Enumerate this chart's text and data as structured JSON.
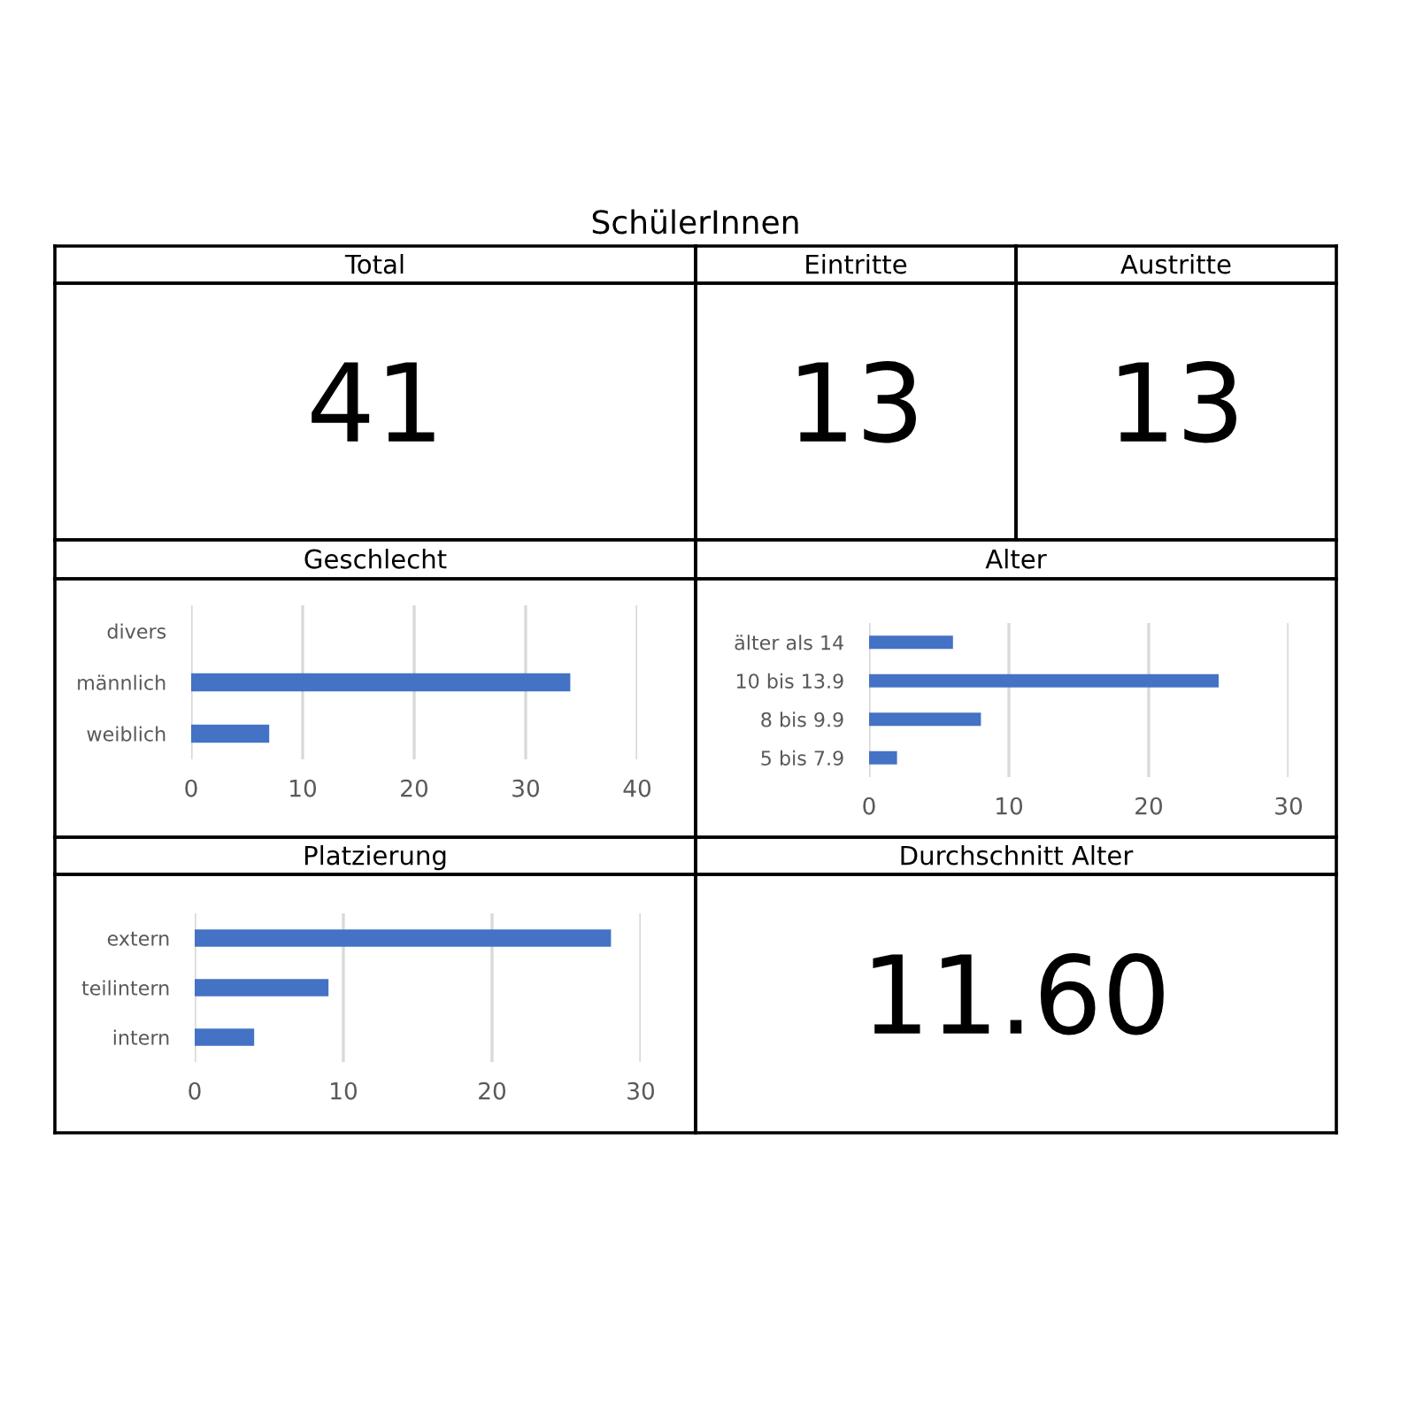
{
  "chart_data": [
    {
      "type": "other",
      "title": "SchülerInnen"
    },
    {
      "type": "other",
      "title": "Total",
      "annotations": [
        "41"
      ]
    },
    {
      "type": "other",
      "title": "Eintritte",
      "annotations": [
        "13"
      ]
    },
    {
      "type": "other",
      "title": "Austritte",
      "annotations": [
        "13"
      ]
    },
    {
      "type": "bar",
      "orientation": "horizontal",
      "title": "Geschlecht",
      "categories": [
        "divers",
        "männlich",
        "weiblich"
      ],
      "values": [
        0,
        34,
        7
      ],
      "color": "#4472c4",
      "xlim": [
        0,
        40
      ],
      "xticks": [
        0,
        10,
        20,
        30,
        40
      ],
      "grid": "x"
    },
    {
      "type": "bar",
      "orientation": "horizontal",
      "title": "Alter",
      "categories": [
        "älter als 14",
        "10 bis 13.9",
        "8 bis 9.9",
        "5 bis 7.9"
      ],
      "values": [
        6,
        25,
        8,
        2
      ],
      "color": "#4472c4",
      "xlim": [
        0,
        30
      ],
      "xticks": [
        0,
        10,
        20,
        30
      ],
      "grid": "x"
    },
    {
      "type": "bar",
      "orientation": "horizontal",
      "title": "Platzierung",
      "categories": [
        "extern",
        "teilintern",
        "intern"
      ],
      "values": [
        28,
        9,
        4
      ],
      "color": "#4472c4",
      "xlim": [
        0,
        30
      ],
      "xticks": [
        0,
        10,
        20,
        30
      ],
      "grid": "x"
    },
    {
      "type": "other",
      "title": "Durchschnitt Alter",
      "annotations": [
        "11.60"
      ]
    }
  ]
}
